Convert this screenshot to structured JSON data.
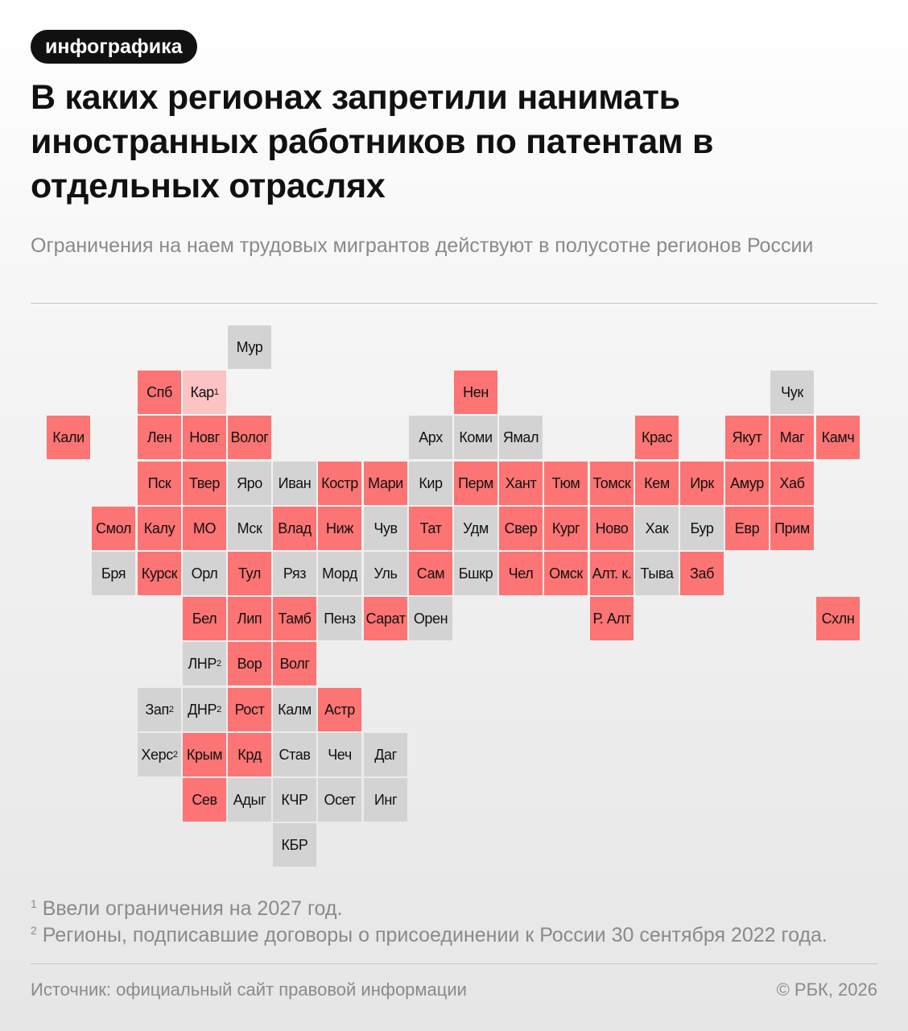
{
  "badge": "инфографика",
  "title": "В каких регионах запретили нанимать иностранных работников по патентам в отдельных отраслях",
  "subtitle": "Ограничения на наем трудовых мигрантов действуют в полусотне регионов России",
  "colors": {
    "ban": "#fc7474",
    "none": "#d3d3d3",
    "ban_from_2027": "#fcc3c3"
  },
  "map": {
    "regions": [
      {
        "label": "Мур",
        "status": "none",
        "row": 0,
        "col": 5
      },
      {
        "label": "Спб",
        "status": "ban",
        "row": 1,
        "col": 3
      },
      {
        "label": "Кар",
        "sup": "1",
        "status": "ban_from_2027",
        "row": 1,
        "col": 4
      },
      {
        "label": "Нен",
        "status": "ban",
        "row": 1,
        "col": 10
      },
      {
        "label": "Чук",
        "status": "none",
        "row": 1,
        "col": 17
      },
      {
        "label": "Кали",
        "status": "ban",
        "row": 2,
        "col": 1
      },
      {
        "label": "Лен",
        "status": "ban",
        "row": 2,
        "col": 3
      },
      {
        "label": "Новг",
        "status": "ban",
        "row": 2,
        "col": 4
      },
      {
        "label": "Волог",
        "status": "ban",
        "row": 2,
        "col": 5
      },
      {
        "label": "Арх",
        "status": "none",
        "row": 2,
        "col": 9
      },
      {
        "label": "Коми",
        "status": "none",
        "row": 2,
        "col": 10
      },
      {
        "label": "Ямал",
        "status": "none",
        "row": 2,
        "col": 11
      },
      {
        "label": "Крас",
        "status": "ban",
        "row": 2,
        "col": 14
      },
      {
        "label": "Якут",
        "status": "ban",
        "row": 2,
        "col": 16
      },
      {
        "label": "Маг",
        "status": "ban",
        "row": 2,
        "col": 17
      },
      {
        "label": "Камч",
        "status": "ban",
        "row": 2,
        "col": 18
      },
      {
        "label": "Пск",
        "status": "ban",
        "row": 3,
        "col": 3
      },
      {
        "label": "Твер",
        "status": "ban",
        "row": 3,
        "col": 4
      },
      {
        "label": "Яро",
        "status": "none",
        "row": 3,
        "col": 5
      },
      {
        "label": "Иван",
        "status": "none",
        "row": 3,
        "col": 6
      },
      {
        "label": "Костр",
        "status": "ban",
        "row": 3,
        "col": 7
      },
      {
        "label": "Мари",
        "status": "ban",
        "row": 3,
        "col": 8
      },
      {
        "label": "Кир",
        "status": "none",
        "row": 3,
        "col": 9
      },
      {
        "label": "Перм",
        "status": "ban",
        "row": 3,
        "col": 10
      },
      {
        "label": "Хант",
        "status": "ban",
        "row": 3,
        "col": 11
      },
      {
        "label": "Тюм",
        "status": "ban",
        "row": 3,
        "col": 12
      },
      {
        "label": "Томск",
        "status": "ban",
        "row": 3,
        "col": 13
      },
      {
        "label": "Кем",
        "status": "ban",
        "row": 3,
        "col": 14
      },
      {
        "label": "Ирк",
        "status": "ban",
        "row": 3,
        "col": 15
      },
      {
        "label": "Амур",
        "status": "ban",
        "row": 3,
        "col": 16
      },
      {
        "label": "Хаб",
        "status": "ban",
        "row": 3,
        "col": 17
      },
      {
        "label": "Смол",
        "status": "ban",
        "row": 4,
        "col": 2
      },
      {
        "label": "Калу",
        "status": "ban",
        "row": 4,
        "col": 3
      },
      {
        "label": "МО",
        "status": "ban",
        "row": 4,
        "col": 4
      },
      {
        "label": "Мск",
        "status": "none",
        "row": 4,
        "col": 5
      },
      {
        "label": "Влад",
        "status": "ban",
        "row": 4,
        "col": 6
      },
      {
        "label": "Ниж",
        "status": "ban",
        "row": 4,
        "col": 7
      },
      {
        "label": "Чув",
        "status": "none",
        "row": 4,
        "col": 8
      },
      {
        "label": "Тат",
        "status": "ban",
        "row": 4,
        "col": 9
      },
      {
        "label": "Удм",
        "status": "none",
        "row": 4,
        "col": 10
      },
      {
        "label": "Свер",
        "status": "ban",
        "row": 4,
        "col": 11
      },
      {
        "label": "Кург",
        "status": "ban",
        "row": 4,
        "col": 12
      },
      {
        "label": "Ново",
        "status": "ban",
        "row": 4,
        "col": 13
      },
      {
        "label": "Хак",
        "status": "none",
        "row": 4,
        "col": 14
      },
      {
        "label": "Бур",
        "status": "none",
        "row": 4,
        "col": 15
      },
      {
        "label": "Евр",
        "status": "ban",
        "row": 4,
        "col": 16
      },
      {
        "label": "Прим",
        "status": "ban",
        "row": 4,
        "col": 17
      },
      {
        "label": "Бря",
        "status": "none",
        "row": 5,
        "col": 2
      },
      {
        "label": "Курск",
        "status": "ban",
        "row": 5,
        "col": 3
      },
      {
        "label": "Орл",
        "status": "none",
        "row": 5,
        "col": 4
      },
      {
        "label": "Тул",
        "status": "ban",
        "row": 5,
        "col": 5
      },
      {
        "label": "Ряз",
        "status": "none",
        "row": 5,
        "col": 6
      },
      {
        "label": "Морд",
        "status": "none",
        "row": 5,
        "col": 7
      },
      {
        "label": "Уль",
        "status": "none",
        "row": 5,
        "col": 8
      },
      {
        "label": "Сам",
        "status": "ban",
        "row": 5,
        "col": 9
      },
      {
        "label": "Бшкр",
        "status": "none",
        "row": 5,
        "col": 10
      },
      {
        "label": "Чел",
        "status": "ban",
        "row": 5,
        "col": 11
      },
      {
        "label": "Омск",
        "status": "ban",
        "row": 5,
        "col": 12
      },
      {
        "label": "Алт. к.",
        "status": "ban",
        "row": 5,
        "col": 13
      },
      {
        "label": "Тыва",
        "status": "none",
        "row": 5,
        "col": 14
      },
      {
        "label": "Заб",
        "status": "ban",
        "row": 5,
        "col": 15
      },
      {
        "label": "Бел",
        "status": "ban",
        "row": 6,
        "col": 4
      },
      {
        "label": "Лип",
        "status": "ban",
        "row": 6,
        "col": 5
      },
      {
        "label": "Тамб",
        "status": "ban",
        "row": 6,
        "col": 6
      },
      {
        "label": "Пенз",
        "status": "none",
        "row": 6,
        "col": 7
      },
      {
        "label": "Сарат",
        "status": "ban",
        "row": 6,
        "col": 8
      },
      {
        "label": "Орен",
        "status": "none",
        "row": 6,
        "col": 9
      },
      {
        "label": "Р. Алт",
        "status": "ban",
        "row": 6,
        "col": 13
      },
      {
        "label": "Схлн",
        "status": "ban",
        "row": 6,
        "col": 18
      },
      {
        "label": "ЛНР",
        "sup": "2",
        "status": "none",
        "row": 7,
        "col": 4
      },
      {
        "label": "Вор",
        "status": "ban",
        "row": 7,
        "col": 5
      },
      {
        "label": "Волг",
        "status": "ban",
        "row": 7,
        "col": 6
      },
      {
        "label": "Зап",
        "sup": "2",
        "status": "none",
        "row": 8,
        "col": 3
      },
      {
        "label": "ДНР",
        "sup": "2",
        "status": "none",
        "row": 8,
        "col": 4
      },
      {
        "label": "Рост",
        "status": "ban",
        "row": 8,
        "col": 5
      },
      {
        "label": "Калм",
        "status": "none",
        "row": 8,
        "col": 6
      },
      {
        "label": "Астр",
        "status": "ban",
        "row": 8,
        "col": 7
      },
      {
        "label": "Херс",
        "sup": "2",
        "status": "none",
        "row": 9,
        "col": 3
      },
      {
        "label": "Крым",
        "status": "ban",
        "row": 9,
        "col": 4
      },
      {
        "label": "Крд",
        "status": "ban",
        "row": 9,
        "col": 5
      },
      {
        "label": "Став",
        "status": "none",
        "row": 9,
        "col": 6
      },
      {
        "label": "Чеч",
        "status": "none",
        "row": 9,
        "col": 7
      },
      {
        "label": "Даг",
        "status": "none",
        "row": 9,
        "col": 8
      },
      {
        "label": "Сев",
        "status": "ban",
        "row": 10,
        "col": 4
      },
      {
        "label": "Адыг",
        "status": "none",
        "row": 10,
        "col": 5
      },
      {
        "label": "КЧР",
        "status": "none",
        "row": 10,
        "col": 6
      },
      {
        "label": "Осет",
        "status": "none",
        "row": 10,
        "col": 7
      },
      {
        "label": "Инг",
        "status": "none",
        "row": 10,
        "col": 8
      },
      {
        "label": "КБР",
        "status": "none",
        "row": 11,
        "col": 6
      }
    ]
  },
  "footnotes": {
    "note1_mark": "1",
    "note1_text": " Ввели ограничения на 2027 год.",
    "note2_mark": "2",
    "note2_text": " Регионы, подписавшие договоры о присоединении к России 30 сентября 2022 года."
  },
  "footer": {
    "source": "Источник: официальный сайт правовой информации",
    "copyright": "© РБК, 2026"
  }
}
